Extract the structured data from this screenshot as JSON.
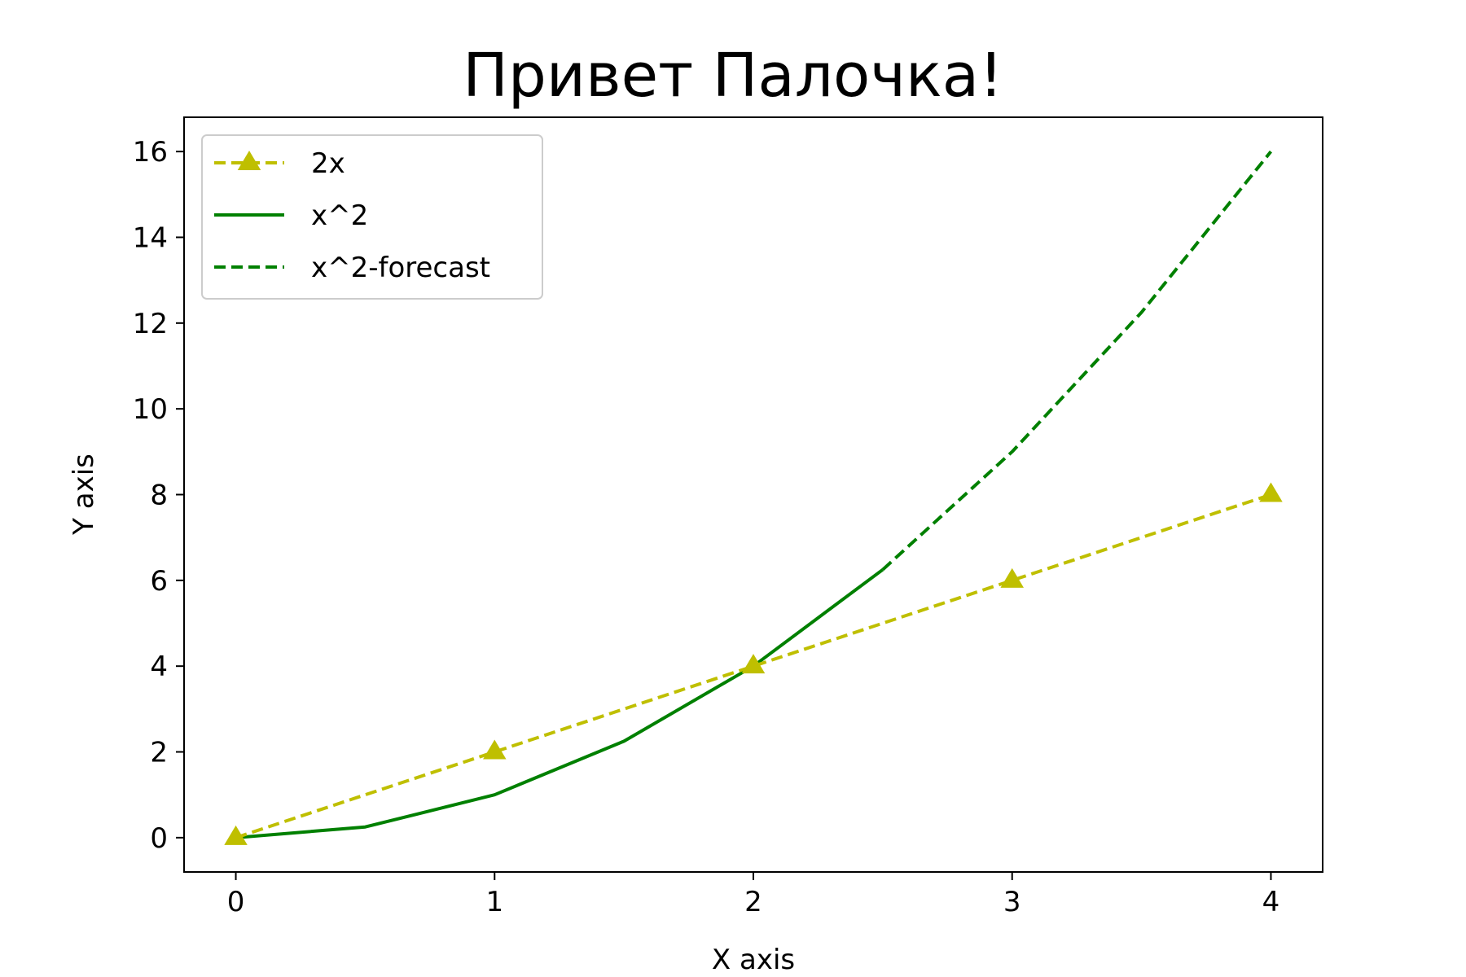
{
  "chart_data": {
    "type": "line",
    "title": "Привет Палочка!",
    "xlabel": "X axis",
    "ylabel": "Y axis",
    "xlim": [
      -0.2,
      4.2
    ],
    "ylim": [
      -0.8,
      16.8
    ],
    "xticks": [
      0,
      1,
      2,
      3,
      4
    ],
    "yticks": [
      0,
      2,
      4,
      6,
      8,
      10,
      12,
      14,
      16
    ],
    "grid": false,
    "legend_position": "top-left",
    "series": [
      {
        "name": "2x",
        "color": "#bfbf00",
        "style": "dashed",
        "marker": "triangle",
        "x": [
          0,
          1,
          2,
          3,
          4
        ],
        "y": [
          0,
          2,
          4,
          6,
          8
        ]
      },
      {
        "name": "x^2",
        "color": "#008000",
        "style": "solid",
        "marker": "none",
        "x": [
          0,
          0.5,
          1,
          1.5,
          2,
          2.5
        ],
        "y": [
          0,
          0.25,
          1,
          2.25,
          4,
          6.25
        ]
      },
      {
        "name": "x^2-forecast",
        "color": "#008000",
        "style": "dashed",
        "marker": "none",
        "x": [
          2.5,
          3,
          3.5,
          4
        ],
        "y": [
          6.25,
          9,
          12.25,
          16
        ]
      }
    ]
  }
}
